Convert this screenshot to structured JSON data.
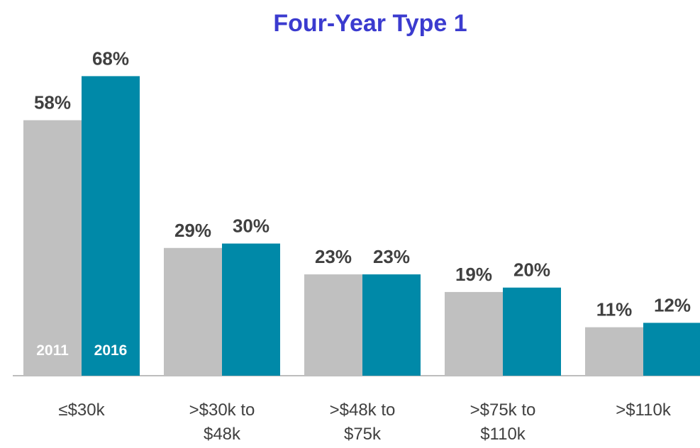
{
  "chart_data": {
    "type": "bar",
    "title": "Four-Year Type 1",
    "categories": [
      "≤$30k",
      ">$30k to\n$48k",
      ">$48k to\n$75k",
      ">$75k to\n$110k",
      ">$110k"
    ],
    "series": [
      {
        "name": "2011",
        "color": "#c0c0c0",
        "values": [
          58,
          29,
          23,
          19,
          11
        ],
        "value_labels": [
          "58%",
          "29%",
          "23%",
          "19%",
          "11%"
        ]
      },
      {
        "name": "2016",
        "color": "#0089a8",
        "values": [
          68,
          30,
          23,
          20,
          12
        ],
        "value_labels": [
          "68%",
          "30%",
          "23%",
          "20%",
          "12%"
        ]
      }
    ],
    "ylim": [
      0,
      70
    ]
  }
}
